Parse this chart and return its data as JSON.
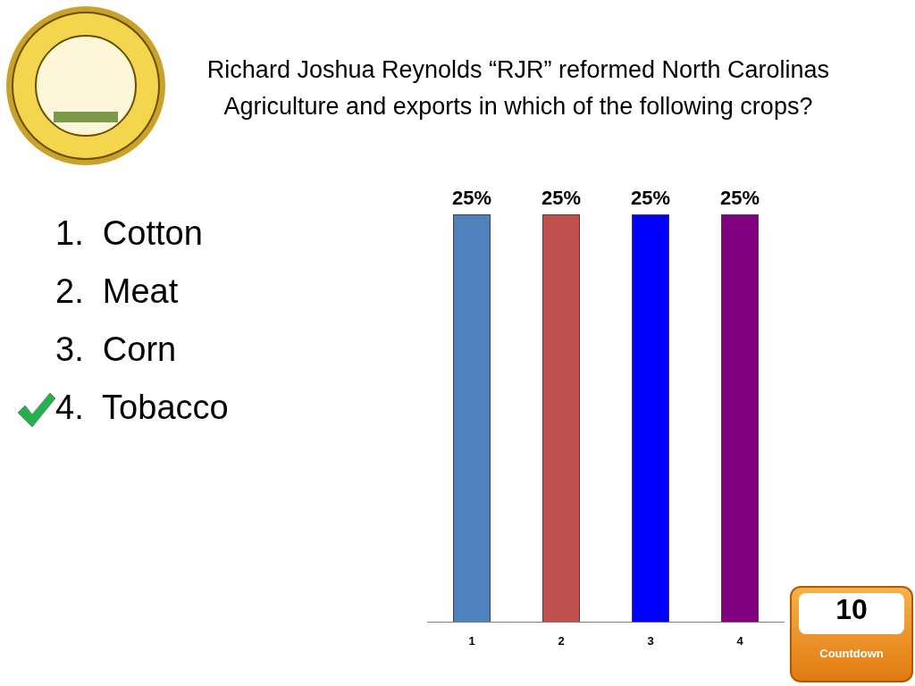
{
  "chart_data": {
    "type": "bar",
    "title": "Richard Joshua Reynolds “RJR” reformed North Carolinas Agriculture and exports in which of the following crops?",
    "categories": [
      "1",
      "2",
      "3",
      "4"
    ],
    "values": [
      25,
      25,
      25,
      25
    ],
    "colors": [
      "#4f81bd",
      "#c0504d",
      "#0000ff",
      "#800080"
    ],
    "value_labels": [
      "25%",
      "25%",
      "25%",
      "25%"
    ],
    "ylim": [
      0,
      25
    ],
    "tick_labels": "x",
    "grid": false,
    "legend": false,
    "annotations": [
      "1.  Cotton",
      "2.  Meat",
      "3.  Corn",
      "4.  Tobacco",
      "10",
      "Countdown"
    ]
  }
}
